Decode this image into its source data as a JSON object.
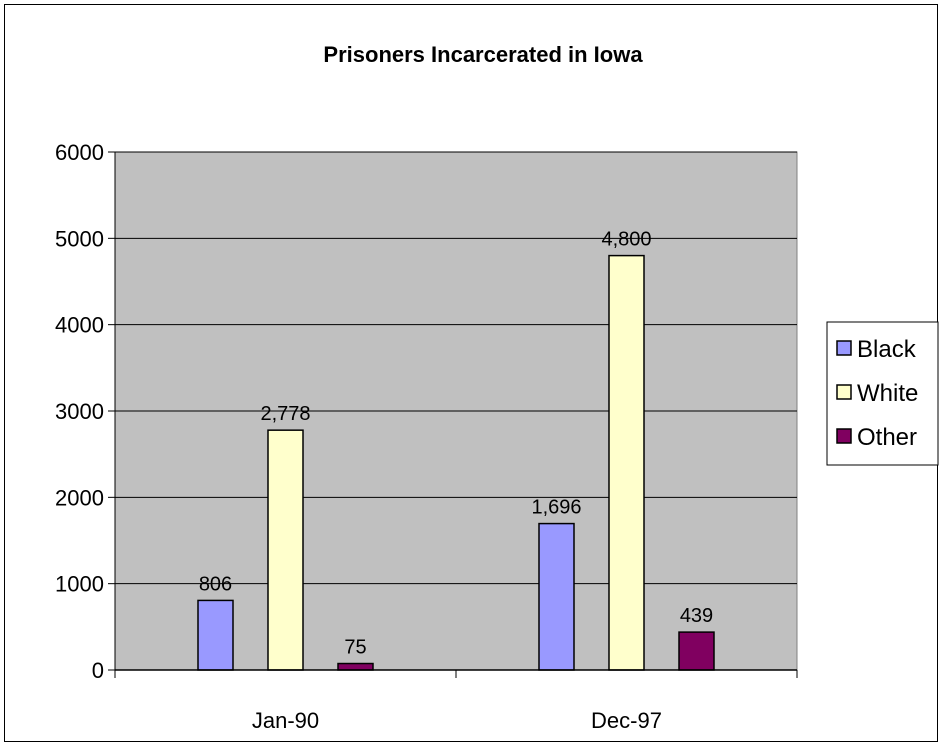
{
  "chart_data": {
    "type": "bar",
    "title": "Prisoners Incarcerated in Iowa",
    "xlabel": "",
    "ylabel": "",
    "categories": [
      "Jan-90",
      "Dec-97"
    ],
    "series": [
      {
        "name": "Black",
        "values": [
          806,
          1696
        ],
        "labels": [
          "806",
          "1,696"
        ],
        "color": "#9999ff"
      },
      {
        "name": "White",
        "values": [
          2778,
          4800
        ],
        "labels": [
          "2,778",
          "4,800"
        ],
        "color": "#ffffcc"
      },
      {
        "name": "Other",
        "values": [
          75,
          439
        ],
        "labels": [
          "75",
          "439"
        ],
        "color": "#800060"
      }
    ],
    "ylim": [
      0,
      6000
    ],
    "yticks": [
      0,
      1000,
      2000,
      3000,
      4000,
      5000,
      6000
    ],
    "grid": true,
    "plot_background": "#c0c0c0",
    "legend_position": "right"
  }
}
